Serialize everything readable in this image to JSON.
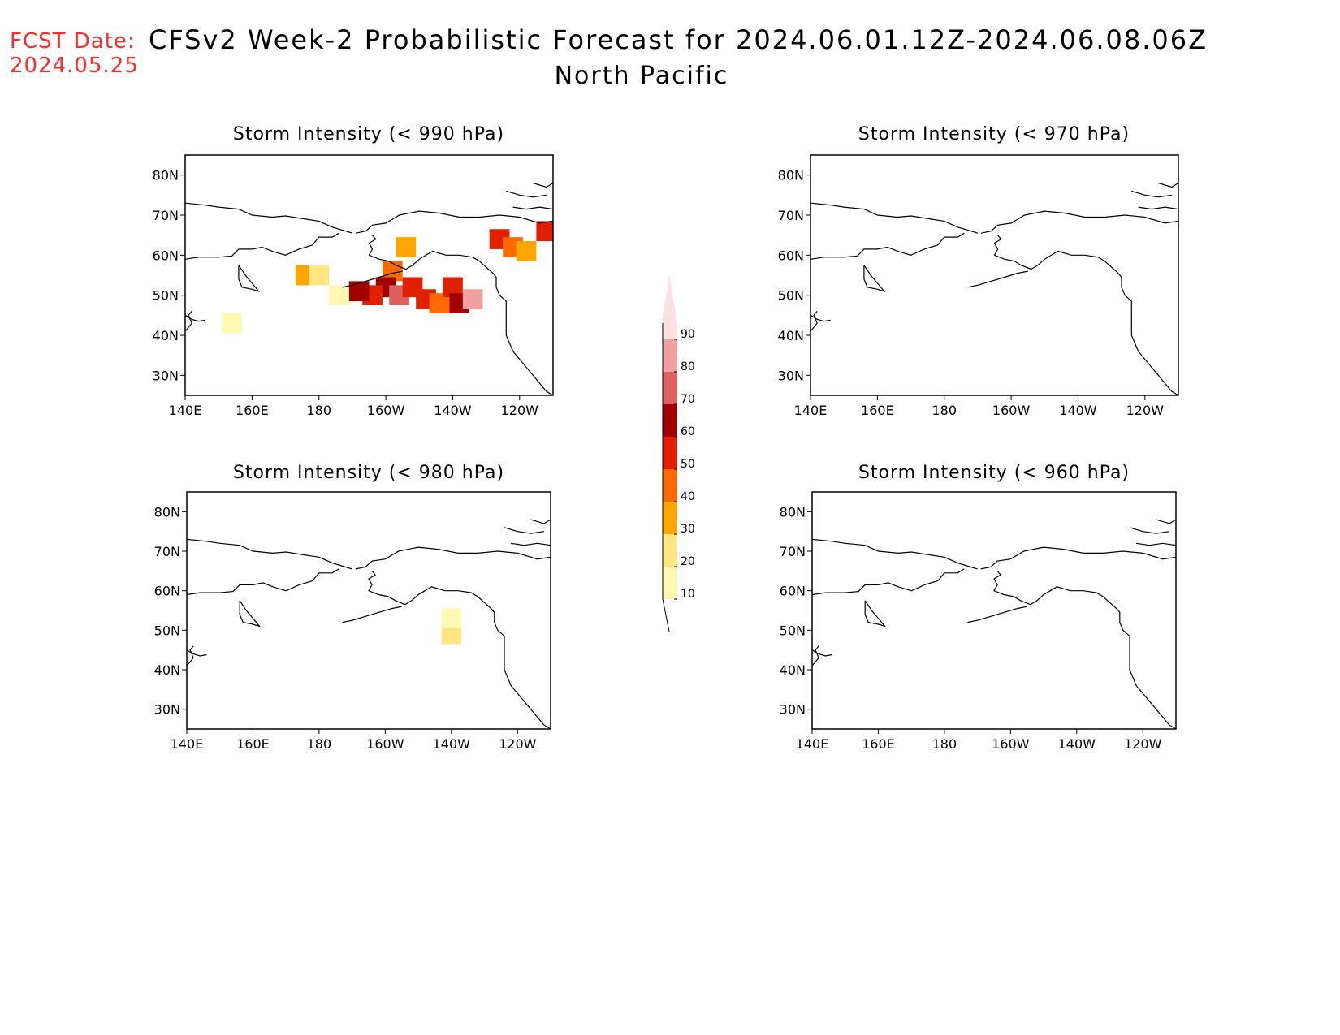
{
  "header": {
    "fcst_label": "FCST Date:",
    "fcst_date": "2024.05.25",
    "title": "CFSv2 Week-2 Probabilistic Forecast for 2024.06.01.12Z-2024.06.08.06Z",
    "region": "North Pacific"
  },
  "axes": {
    "lon_ticks": [
      "140E",
      "160E",
      "180",
      "160W",
      "140W",
      "120W"
    ],
    "lat_ticks": [
      "80N",
      "70N",
      "60N",
      "50N",
      "40N",
      "30N"
    ],
    "lon_values": [
      140,
      160,
      180,
      200,
      220,
      240
    ],
    "lat_values": [
      80,
      70,
      60,
      50,
      40,
      30
    ],
    "lon_range": [
      140,
      250
    ],
    "lat_range": [
      25,
      85
    ]
  },
  "colorbar": {
    "levels": [
      "10",
      "20",
      "30",
      "40",
      "50",
      "60",
      "70",
      "80",
      "90"
    ],
    "colors": [
      "#fff8b0",
      "#ffe680",
      "#ffa500",
      "#ff6a00",
      "#e02000",
      "#a00000",
      "#e06060",
      "#f0a0a0",
      "#ffe0e0"
    ]
  },
  "panels": [
    {
      "id": "p990",
      "title": "Storm Intensity (< 990 hPa)",
      "cells": [
        {
          "lon": 206,
          "lat": 62,
          "v": 35
        },
        {
          "lon": 202,
          "lat": 56,
          "v": 45
        },
        {
          "lon": 200,
          "lat": 52,
          "v": 60
        },
        {
          "lon": 196,
          "lat": 50,
          "v": 55
        },
        {
          "lon": 192,
          "lat": 51,
          "v": 65
        },
        {
          "lon": 204,
          "lat": 50,
          "v": 75
        },
        {
          "lon": 208,
          "lat": 52,
          "v": 55
        },
        {
          "lon": 212,
          "lat": 49,
          "v": 50
        },
        {
          "lon": 216,
          "lat": 48,
          "v": 45
        },
        {
          "lon": 220,
          "lat": 52,
          "v": 55
        },
        {
          "lon": 222,
          "lat": 48,
          "v": 65
        },
        {
          "lon": 226,
          "lat": 49,
          "v": 80
        },
        {
          "lon": 176,
          "lat": 55,
          "v": 35
        },
        {
          "lon": 180,
          "lat": 55,
          "v": 20
        },
        {
          "lon": 186,
          "lat": 50,
          "v": 15
        },
        {
          "lon": 234,
          "lat": 64,
          "v": 50
        },
        {
          "lon": 238,
          "lat": 62,
          "v": 40
        },
        {
          "lon": 248,
          "lat": 66,
          "v": 50
        },
        {
          "lon": 242,
          "lat": 61,
          "v": 30
        },
        {
          "lon": 154,
          "lat": 43,
          "v": 15
        }
      ]
    },
    {
      "id": "p970",
      "title": "Storm Intensity (< 970 hPa)",
      "cells": []
    },
    {
      "id": "p980",
      "title": "Storm Intensity (< 980 hPa)",
      "cells": [
        {
          "lon": 220,
          "lat": 49,
          "v": 20
        },
        {
          "lon": 220,
          "lat": 53,
          "v": 12
        }
      ]
    },
    {
      "id": "p960",
      "title": "Storm Intensity (< 960 hPa)",
      "cells": []
    }
  ]
}
